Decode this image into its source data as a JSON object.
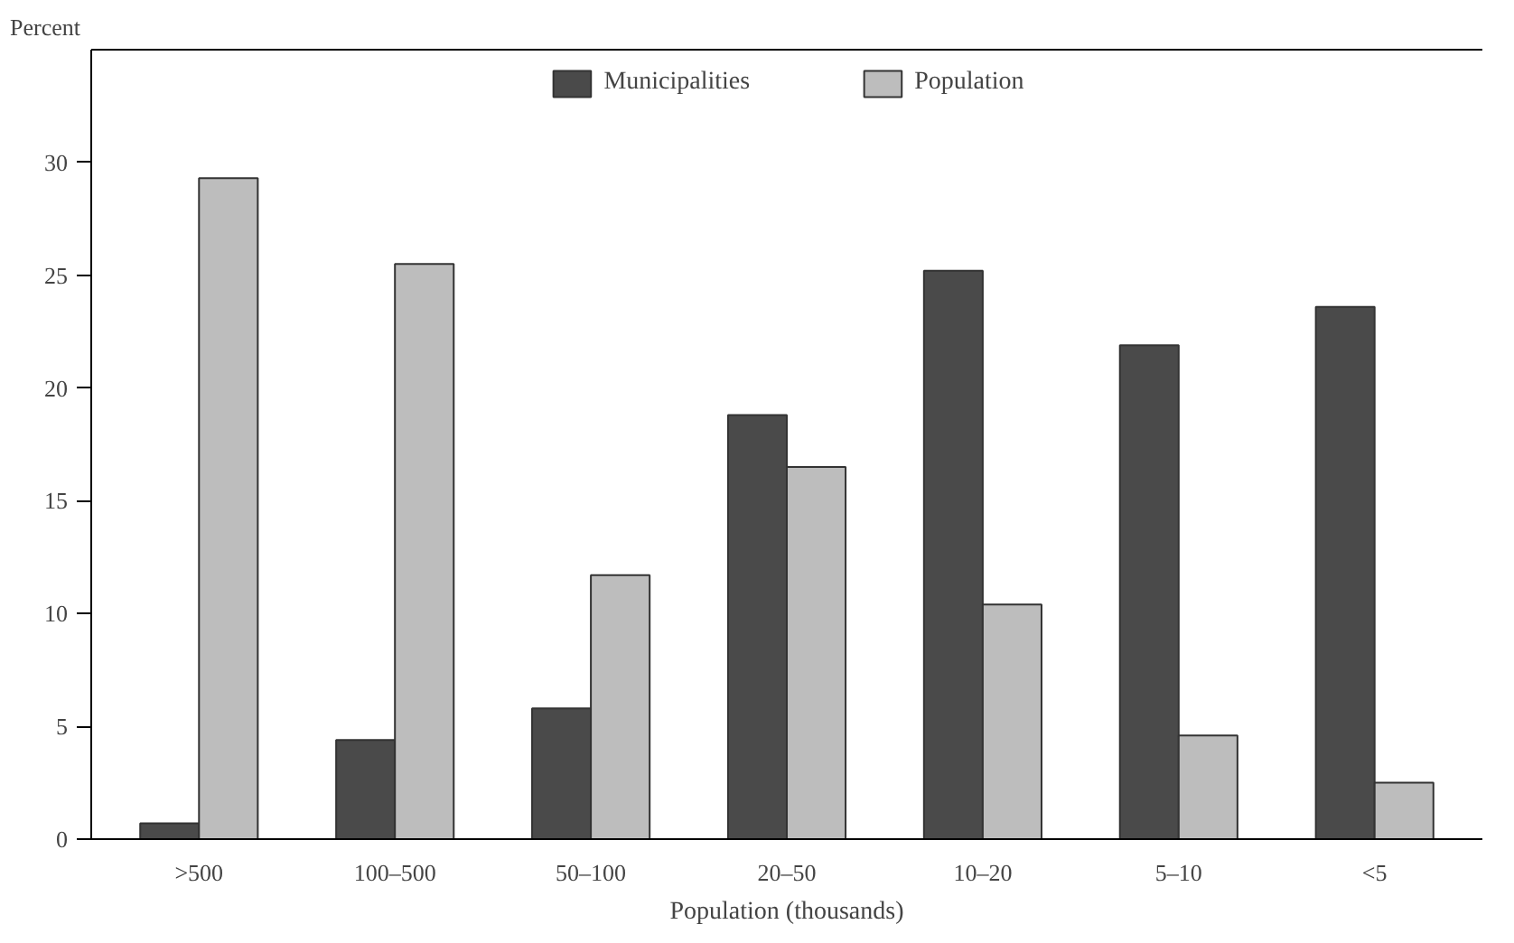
{
  "chart_data": {
    "type": "bar",
    "xlabel": "Population (thousands)",
    "ylabel": "Percent",
    "categories": [
      ">500",
      "100–500",
      "50–100",
      "20–50",
      "10–20",
      "5–10",
      "<5"
    ],
    "series": [
      {
        "name": "Municipalities",
        "color": "#4a4a4a",
        "values": [
          0.7,
          4.4,
          5.8,
          18.8,
          25.2,
          21.9,
          23.6
        ]
      },
      {
        "name": "Population",
        "color": "#bdbdbd",
        "values": [
          29.3,
          25.5,
          11.7,
          16.5,
          10.4,
          4.6,
          2.5
        ]
      }
    ],
    "ylim": [
      0,
      35
    ],
    "yticks": [
      0,
      5,
      10,
      15,
      20,
      25,
      30
    ],
    "grid": false,
    "legend": "top"
  }
}
